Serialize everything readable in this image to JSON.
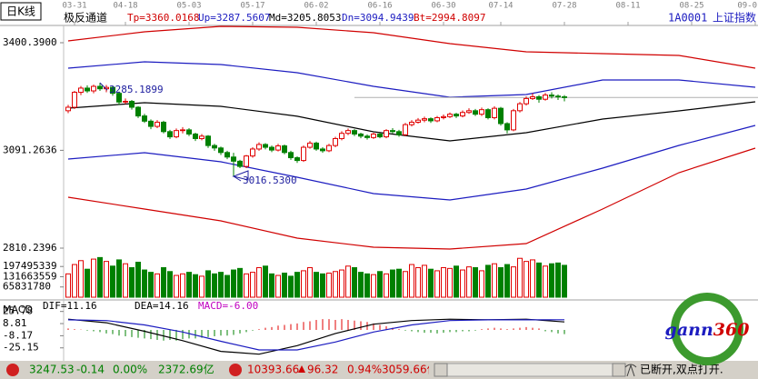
{
  "chart_data": {
    "type": "candlestick",
    "period": "日K线",
    "symbol_code": "1A0001",
    "symbol_name": "上证指数",
    "ylim": [
      2792,
      3450
    ],
    "yticks": [
      {
        "value": 3400.39,
        "label": "3400.3900"
      },
      3091.2636,
      2810.2396
    ],
    "xticks": [
      {
        "value": 1,
        "label": "03-31"
      },
      {
        "value": 9,
        "label": "04-18"
      },
      {
        "value": 19,
        "label": "05-03"
      },
      {
        "value": 29,
        "label": "05-17"
      },
      {
        "value": 39,
        "label": "06-02"
      },
      {
        "value": 49,
        "label": "06-16"
      },
      {
        "value": 59,
        "label": "06-30"
      },
      {
        "value": 68,
        "label": "07-14"
      },
      {
        "value": 78,
        "label": "07-28"
      },
      {
        "value": 88,
        "label": "08-11"
      },
      {
        "value": 98,
        "label": "08-25"
      },
      {
        "value": 108,
        "label": "09-0"
      }
    ],
    "up_color": "#e00000",
    "down_color": "#008000",
    "ohlc": [
      [
        3205,
        3222,
        3198,
        3215
      ],
      [
        3215,
        3262,
        3210,
        3258
      ],
      [
        3258,
        3276,
        3250,
        3270
      ],
      [
        3270,
        3278,
        3256,
        3262
      ],
      [
        3262,
        3280,
        3255,
        3275
      ],
      [
        3275,
        3285.1899,
        3262,
        3268
      ],
      [
        3268,
        3279,
        3258,
        3272
      ],
      [
        3272,
        3276,
        3248,
        3255
      ],
      [
        3255,
        3260,
        3222,
        3230
      ],
      [
        3230,
        3240,
        3224,
        3232
      ],
      [
        3232,
        3236,
        3208,
        3215
      ],
      [
        3215,
        3218,
        3184,
        3190
      ],
      [
        3190,
        3196,
        3170,
        3175
      ],
      [
        3175,
        3180,
        3152,
        3160
      ],
      [
        3160,
        3178,
        3155,
        3172
      ],
      [
        3172,
        3176,
        3140,
        3145
      ],
      [
        3145,
        3150,
        3124,
        3130
      ],
      [
        3130,
        3154,
        3126,
        3148
      ],
      [
        3148,
        3158,
        3140,
        3150
      ],
      [
        3150,
        3155,
        3132,
        3138
      ],
      [
        3138,
        3142,
        3118,
        3125
      ],
      [
        3125,
        3138,
        3120,
        3132
      ],
      [
        3132,
        3135,
        3098,
        3105
      ],
      [
        3105,
        3110,
        3090,
        3098
      ],
      [
        3098,
        3102,
        3078,
        3085
      ],
      [
        3085,
        3090,
        3066,
        3072
      ],
      [
        3072,
        3084,
        3016.53,
        3060
      ],
      [
        3060,
        3064,
        3040,
        3045
      ],
      [
        3045,
        3078,
        3040,
        3075
      ],
      [
        3075,
        3100,
        3070,
        3095
      ],
      [
        3095,
        3114,
        3090,
        3108
      ],
      [
        3108,
        3112,
        3094,
        3100
      ],
      [
        3100,
        3105,
        3086,
        3092
      ],
      [
        3092,
        3110,
        3088,
        3104
      ],
      [
        3104,
        3108,
        3080,
        3085
      ],
      [
        3085,
        3090,
        3064,
        3070
      ],
      [
        3070,
        3074,
        3055,
        3062
      ],
      [
        3062,
        3105,
        3058,
        3100
      ],
      [
        3100,
        3118,
        3096,
        3112
      ],
      [
        3112,
        3116,
        3090,
        3095
      ],
      [
        3095,
        3100,
        3084,
        3090
      ],
      [
        3090,
        3110,
        3086,
        3105
      ],
      [
        3105,
        3130,
        3100,
        3125
      ],
      [
        3125,
        3146,
        3120,
        3140
      ],
      [
        3140,
        3154,
        3135,
        3148
      ],
      [
        3148,
        3152,
        3132,
        3138
      ],
      [
        3138,
        3142,
        3126,
        3132
      ],
      [
        3132,
        3137,
        3122,
        3128
      ],
      [
        3128,
        3142,
        3124,
        3138
      ],
      [
        3138,
        3142,
        3126,
        3130
      ],
      [
        3130,
        3152,
        3126,
        3148
      ],
      [
        3148,
        3155,
        3140,
        3145
      ],
      [
        3145,
        3150,
        3130,
        3136
      ],
      [
        3136,
        3170,
        3132,
        3165
      ],
      [
        3165,
        3178,
        3160,
        3172
      ],
      [
        3172,
        3184,
        3168,
        3178
      ],
      [
        3178,
        3188,
        3172,
        3182
      ],
      [
        3182,
        3186,
        3170,
        3176
      ],
      [
        3176,
        3190,
        3172,
        3185
      ],
      [
        3185,
        3194,
        3180,
        3188
      ],
      [
        3188,
        3200,
        3184,
        3195
      ],
      [
        3195,
        3199,
        3184,
        3190
      ],
      [
        3190,
        3206,
        3186,
        3200
      ],
      [
        3200,
        3212,
        3196,
        3205
      ],
      [
        3205,
        3210,
        3190,
        3195
      ],
      [
        3195,
        3214,
        3190,
        3208
      ],
      [
        3208,
        3212,
        3180,
        3185
      ],
      [
        3185,
        3218,
        3180,
        3212
      ],
      [
        3212,
        3216,
        3162,
        3168
      ],
      [
        3168,
        3172,
        3140,
        3150
      ],
      [
        3150,
        3210,
        3146,
        3205
      ],
      [
        3205,
        3230,
        3200,
        3225
      ],
      [
        3225,
        3246,
        3220,
        3240
      ],
      [
        3240,
        3255,
        3236,
        3245
      ],
      [
        3245,
        3250,
        3228,
        3238
      ],
      [
        3238,
        3256,
        3234,
        3250
      ],
      [
        3250,
        3258,
        3240,
        3247
      ],
      [
        3247,
        3252,
        3236,
        3245
      ],
      [
        3245,
        3250,
        3232,
        3243
      ]
    ],
    "annotations": [
      {
        "index": 5,
        "value": 3285.1899
      },
      {
        "index": 26,
        "value": 3016.53,
        "label": "3016.5300"
      }
    ],
    "annotation_color": "#2020a0",
    "channel": {
      "name": "极反通道",
      "x": [
        0,
        12,
        24,
        36,
        48,
        60,
        72,
        84,
        96,
        108
      ],
      "series": [
        {
          "name": "Tp=3360.0168",
          "color": "#d00000",
          "values": [
            3405.6,
            3431.7,
            3447.4,
            3444.8,
            3429.1,
            3397.8,
            3374.3,
            3369.1,
            3363.8,
            3327.3
          ]
        },
        {
          "name": "Up=3287.5607",
          "color": "#1c1cc0",
          "values": [
            3327.3,
            3345.6,
            3337.7,
            3314.2,
            3275.1,
            3243.7,
            3251.6,
            3293.4,
            3293.4,
            3272.5
          ]
        },
        {
          "name": "Md=3205.8053",
          "color": "#000000",
          "values": [
            3212.4,
            3228.1,
            3217.6,
            3189.1,
            3144.5,
            3118.4,
            3141.9,
            3181.1,
            3204.6,
            3230.7
          ]
        },
        {
          "name": "Dn=3094.9439",
          "color": "#1c1cc0",
          "values": [
            3066.2,
            3084.5,
            3058.4,
            3014.0,
            2967.0,
            2948.7,
            2980.0,
            3040.1,
            3105.4,
            3162.8
          ]
        },
        {
          "name": "Bt=2994.8097",
          "color": "#d00000",
          "values": [
            2956.5,
            2922.6,
            2888.6,
            2839.0,
            2812.9,
            2807.6,
            2823.3,
            2922.6,
            3026.9,
            3097.5
          ]
        }
      ]
    },
    "volume": {
      "ylim": [
        0,
        263000000
      ],
      "yticks": [
        197495339,
        131663559,
        65831780
      ],
      "values": [
        150000000,
        210000000,
        235000000,
        180000000,
        245000000,
        255000000,
        230000000,
        200000000,
        240000000,
        215000000,
        190000000,
        225000000,
        175000000,
        160000000,
        150000000,
        190000000,
        165000000,
        140000000,
        150000000,
        160000000,
        145000000,
        135000000,
        170000000,
        150000000,
        160000000,
        140000000,
        175000000,
        185000000,
        150000000,
        160000000,
        190000000,
        200000000,
        150000000,
        140000000,
        155000000,
        135000000,
        160000000,
        170000000,
        190000000,
        160000000,
        150000000,
        155000000,
        165000000,
        175000000,
        200000000,
        190000000,
        160000000,
        150000000,
        145000000,
        165000000,
        150000000,
        175000000,
        180000000,
        165000000,
        210000000,
        190000000,
        205000000,
        180000000,
        170000000,
        190000000,
        185000000,
        200000000,
        175000000,
        195000000,
        190000000,
        170000000,
        205000000,
        215000000,
        190000000,
        210000000,
        195000000,
        250000000,
        230000000,
        240000000,
        220000000,
        200000000,
        215000000,
        220000000,
        205000000
      ]
    },
    "macd": {
      "title": "MACD",
      "ylim": [
        -42,
        33
      ],
      "yticks": [
        25.78,
        8.81,
        -8.17,
        -25.15
      ],
      "x": [
        0,
        6,
        12,
        18,
        24,
        30,
        36,
        42,
        48,
        54,
        60,
        66,
        72,
        78
      ],
      "series": [
        {
          "name": "DIF=11.16",
          "color": "#000000",
          "values": [
            15,
            10,
            -2,
            -15,
            -30,
            -34,
            -22,
            -5,
            8,
            13,
            15,
            14,
            15,
            11.16
          ]
        },
        {
          "name": "DEA=14.16",
          "color": "#1c1cc0",
          "values": [
            14,
            13,
            7,
            -3,
            -16,
            -28,
            -28,
            -17,
            -3,
            7,
            13,
            14,
            14,
            14.16
          ]
        }
      ],
      "histogram": {
        "name": "MACD=-6.00",
        "color": "#c000c0",
        "values": [
          2,
          1,
          0.5,
          -1,
          -2,
          -3,
          -5,
          -6,
          -8,
          -9,
          -10,
          -11,
          -12,
          -13,
          -14,
          -15,
          -14,
          -15,
          -13,
          -12,
          -12,
          -11,
          -10,
          -9,
          -8,
          -8,
          -7,
          -5,
          -3,
          -1,
          1,
          3,
          4,
          6,
          7,
          8,
          9,
          11,
          12,
          14,
          15,
          15,
          14,
          15,
          14,
          13,
          12,
          11,
          9,
          7,
          5,
          3,
          1,
          -1,
          -2,
          -3,
          -4,
          -4,
          -5,
          -4,
          -3,
          -3,
          -2,
          -2,
          -1,
          1,
          2,
          3,
          2,
          1,
          2,
          3,
          4,
          3,
          2,
          -2,
          -3,
          -5,
          -6
        ]
      }
    }
  },
  "status_bar": {
    "sh": [
      "3247.53",
      "-0.14",
      "0.00%",
      "2372.69亿"
    ],
    "sz": [
      "10393.66",
      "96.32",
      "0.94%",
      "3059.66亿"
    ],
    "connection": "已断开,双点打开."
  },
  "logo": [
    "gann",
    "360"
  ]
}
